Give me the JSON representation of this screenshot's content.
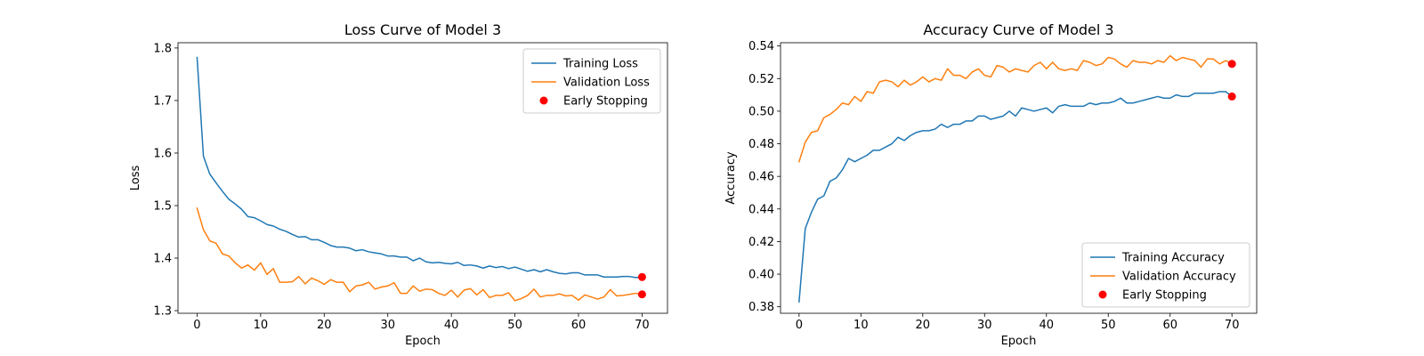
{
  "chart_data": [
    {
      "type": "line",
      "title": "Loss Curve of Model 3",
      "xlabel": "Epoch",
      "ylabel": "Loss",
      "xlim": [
        -3,
        74
      ],
      "ylim": [
        1.295,
        1.81
      ],
      "xticks": [
        0,
        10,
        20,
        30,
        40,
        50,
        60,
        70
      ],
      "yticks": [
        1.3,
        1.4,
        1.5,
        1.6,
        1.7,
        1.8
      ],
      "ytick_labels": [
        "1.3",
        "1.4",
        "1.5",
        "1.6",
        "1.7",
        "1.8"
      ],
      "grid": false,
      "legend": "top-right",
      "series": [
        {
          "name": "Training Loss",
          "color": "#1f77b4",
          "values": [
            1.782,
            1.594,
            1.56,
            1.543,
            1.527,
            1.512,
            1.503,
            1.493,
            1.479,
            1.477,
            1.471,
            1.464,
            1.461,
            1.455,
            1.451,
            1.445,
            1.44,
            1.441,
            1.435,
            1.435,
            1.43,
            1.424,
            1.421,
            1.421,
            1.419,
            1.414,
            1.416,
            1.412,
            1.41,
            1.408,
            1.404,
            1.404,
            1.402,
            1.402,
            1.395,
            1.4,
            1.393,
            1.391,
            1.392,
            1.39,
            1.389,
            1.392,
            1.386,
            1.387,
            1.385,
            1.381,
            1.385,
            1.382,
            1.384,
            1.38,
            1.383,
            1.379,
            1.375,
            1.378,
            1.374,
            1.378,
            1.374,
            1.371,
            1.37,
            1.372,
            1.372,
            1.368,
            1.368,
            1.368,
            1.364,
            1.364,
            1.364,
            1.365,
            1.365,
            1.363,
            1.364
          ]
        },
        {
          "name": "Validation Loss",
          "color": "#ff7f0e",
          "values": [
            1.495,
            1.454,
            1.433,
            1.428,
            1.408,
            1.404,
            1.391,
            1.381,
            1.387,
            1.377,
            1.391,
            1.369,
            1.38,
            1.354,
            1.354,
            1.355,
            1.365,
            1.351,
            1.362,
            1.357,
            1.35,
            1.359,
            1.354,
            1.354,
            1.336,
            1.347,
            1.349,
            1.354,
            1.341,
            1.345,
            1.347,
            1.353,
            1.333,
            1.333,
            1.347,
            1.337,
            1.341,
            1.34,
            1.333,
            1.329,
            1.339,
            1.326,
            1.339,
            1.342,
            1.33,
            1.34,
            1.325,
            1.329,
            1.329,
            1.334,
            1.319,
            1.323,
            1.329,
            1.341,
            1.326,
            1.329,
            1.329,
            1.332,
            1.328,
            1.329,
            1.32,
            1.33,
            1.326,
            1.322,
            1.326,
            1.34,
            1.328,
            1.329,
            1.331,
            1.333,
            1.331
          ]
        }
      ],
      "early_stopping": {
        "name": "Early Stopping",
        "color": "#ff0000",
        "x": 70,
        "y_values": [
          1.364,
          1.331
        ]
      }
    },
    {
      "type": "line",
      "title": "Accuracy Curve of Model 3",
      "xlabel": "Epoch",
      "ylabel": "Accuracy",
      "xlim": [
        -3,
        74
      ],
      "ylim": [
        0.376,
        0.542
      ],
      "xticks": [
        0,
        10,
        20,
        30,
        40,
        50,
        60,
        70
      ],
      "yticks": [
        0.38,
        0.4,
        0.42,
        0.44,
        0.46,
        0.48,
        0.5,
        0.52,
        0.54
      ],
      "ytick_labels": [
        "0.38",
        "0.40",
        "0.42",
        "0.44",
        "0.46",
        "0.48",
        "0.50",
        "0.52",
        "0.54"
      ],
      "grid": false,
      "legend": "bottom-right",
      "series": [
        {
          "name": "Training Accuracy",
          "color": "#1f77b4",
          "values": [
            0.383,
            0.428,
            0.438,
            0.446,
            0.448,
            0.457,
            0.459,
            0.464,
            0.471,
            0.469,
            0.471,
            0.473,
            0.476,
            0.476,
            0.478,
            0.48,
            0.484,
            0.482,
            0.485,
            0.487,
            0.488,
            0.488,
            0.489,
            0.492,
            0.49,
            0.492,
            0.492,
            0.494,
            0.494,
            0.497,
            0.497,
            0.495,
            0.496,
            0.497,
            0.5,
            0.497,
            0.502,
            0.501,
            0.5,
            0.501,
            0.502,
            0.499,
            0.503,
            0.504,
            0.503,
            0.503,
            0.503,
            0.505,
            0.504,
            0.505,
            0.505,
            0.506,
            0.508,
            0.505,
            0.505,
            0.506,
            0.507,
            0.508,
            0.509,
            0.508,
            0.508,
            0.51,
            0.509,
            0.509,
            0.511,
            0.511,
            0.511,
            0.511,
            0.512,
            0.512,
            0.509
          ]
        },
        {
          "name": "Validation Accuracy",
          "color": "#ff7f0e",
          "values": [
            0.469,
            0.481,
            0.487,
            0.488,
            0.496,
            0.498,
            0.501,
            0.505,
            0.504,
            0.509,
            0.506,
            0.512,
            0.511,
            0.518,
            0.519,
            0.518,
            0.515,
            0.519,
            0.516,
            0.518,
            0.521,
            0.518,
            0.52,
            0.519,
            0.526,
            0.522,
            0.522,
            0.52,
            0.524,
            0.526,
            0.522,
            0.521,
            0.528,
            0.527,
            0.524,
            0.526,
            0.525,
            0.524,
            0.528,
            0.53,
            0.526,
            0.53,
            0.526,
            0.525,
            0.526,
            0.525,
            0.531,
            0.53,
            0.528,
            0.529,
            0.533,
            0.532,
            0.529,
            0.527,
            0.531,
            0.53,
            0.53,
            0.529,
            0.531,
            0.53,
            0.534,
            0.531,
            0.533,
            0.532,
            0.531,
            0.527,
            0.532,
            0.532,
            0.529,
            0.531,
            0.529
          ]
        }
      ],
      "early_stopping": {
        "name": "Early Stopping",
        "color": "#ff0000",
        "x": 70,
        "y_values": [
          0.509,
          0.529
        ]
      }
    }
  ]
}
